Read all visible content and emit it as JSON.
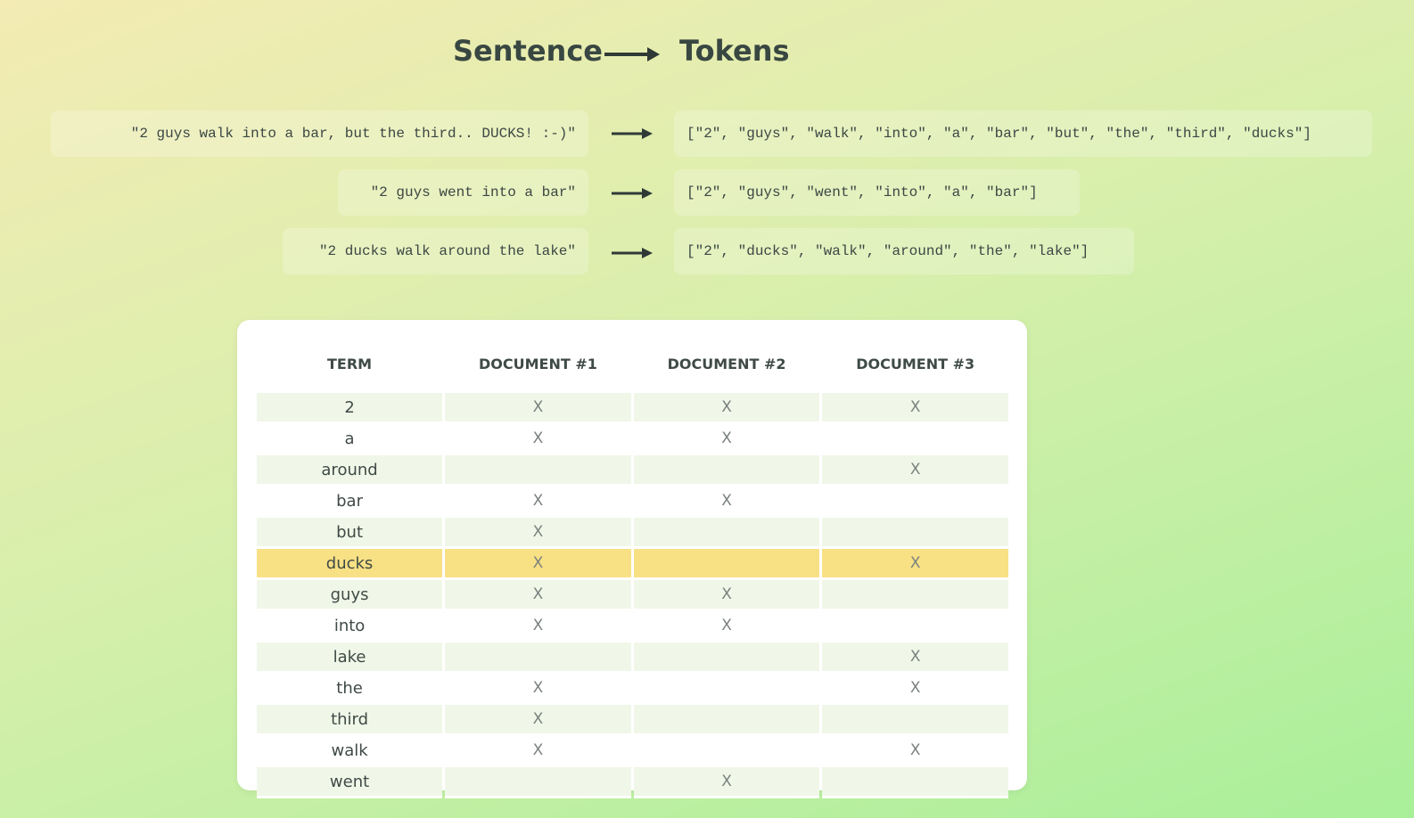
{
  "header": {
    "left_title": "Sentence",
    "right_title": "Tokens"
  },
  "examples": [
    {
      "sentence": "\"2 guys walk into  a bar, but the third.. DUCKS! :-)\"",
      "tokens": "[\"2\", \"guys\", \"walk\", \"into\", \"a\", \"bar\", \"but\", \"the\", \"third\", \"ducks\"]"
    },
    {
      "sentence": "\"2 guys went into a bar\"",
      "tokens": "[\"2\", \"guys\", \"went\", \"into\", \"a\", \"bar\"]"
    },
    {
      "sentence": "\"2 ducks walk around the lake\"",
      "tokens": "[\"2\", \"ducks\", \"walk\", \"around\", \"the\", \"lake\"]"
    }
  ],
  "table": {
    "columns": [
      "TERM",
      "DOCUMENT #1",
      "DOCUMENT #2",
      "DOCUMENT #3"
    ],
    "rows": [
      {
        "term": "2",
        "d1": "X",
        "d2": "X",
        "d3": "X"
      },
      {
        "term": "a",
        "d1": "X",
        "d2": "X",
        "d3": ""
      },
      {
        "term": "around",
        "d1": "",
        "d2": "",
        "d3": "X"
      },
      {
        "term": "bar",
        "d1": "X",
        "d2": "X",
        "d3": ""
      },
      {
        "term": "but",
        "d1": "X",
        "d2": "",
        "d3": ""
      },
      {
        "term": "ducks",
        "d1": "X",
        "d2": "",
        "d3": "X"
      },
      {
        "term": "guys",
        "d1": "X",
        "d2": "X",
        "d3": ""
      },
      {
        "term": "into",
        "d1": "X",
        "d2": "X",
        "d3": ""
      },
      {
        "term": "lake",
        "d1": "",
        "d2": "",
        "d3": "X"
      },
      {
        "term": "the",
        "d1": "X",
        "d2": "",
        "d3": "X"
      },
      {
        "term": "third",
        "d1": "X",
        "d2": "",
        "d3": ""
      },
      {
        "term": "walk",
        "d1": "X",
        "d2": "",
        "d3": "X"
      },
      {
        "term": "went",
        "d1": "",
        "d2": "X",
        "d3": ""
      }
    ],
    "highlighted_term": "ducks"
  },
  "colors": {
    "highlight": "#f8e084",
    "band": "#f0f7e8",
    "text": "#3f4a46"
  }
}
